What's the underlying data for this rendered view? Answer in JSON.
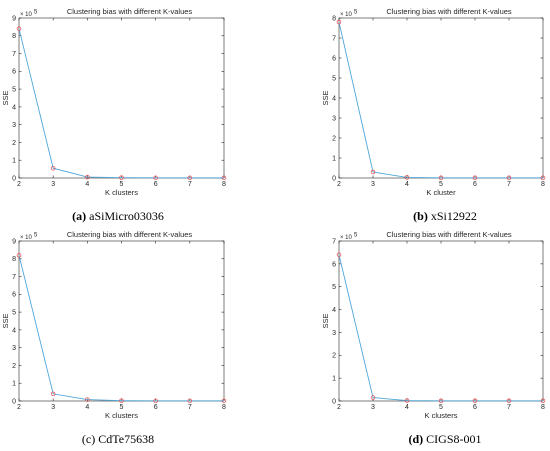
{
  "chart_data": [
    {
      "type": "line",
      "title": "Clustering bias with different K-values",
      "xlabel": "K clusters",
      "ylabel": "SSE",
      "multiplier": "× 10",
      "multiplier_exp": "5",
      "x": [
        2,
        3,
        4,
        5,
        6,
        7,
        8
      ],
      "y": [
        8.4,
        0.55,
        0.05,
        0.02,
        0.01,
        0.01,
        0.01
      ],
      "xlim": [
        2,
        8
      ],
      "ylim": [
        0,
        9
      ],
      "yticks": [
        0,
        1,
        2,
        3,
        4,
        5,
        6,
        7,
        8,
        9
      ],
      "caption_tag": "(a)",
      "caption_text": " aSiMicro03036",
      "tag_bold": true
    },
    {
      "type": "line",
      "title": "Clustering bias with different K-values",
      "xlabel": "K cluster",
      "ylabel": "SSE",
      "multiplier": "× 10",
      "multiplier_exp": "5",
      "x": [
        2,
        3,
        4,
        5,
        6,
        7,
        8
      ],
      "y": [
        7.8,
        0.3,
        0.03,
        0.01,
        0.01,
        0.01,
        0.01
      ],
      "xlim": [
        2,
        8
      ],
      "ylim": [
        0,
        8
      ],
      "yticks": [
        0,
        1,
        2,
        3,
        4,
        5,
        6,
        7,
        8
      ],
      "caption_tag": "(b)",
      "caption_text": " xSi12922",
      "tag_bold": true
    },
    {
      "type": "line",
      "title": "Clustering bias with different K-values",
      "xlabel": "K clusters",
      "ylabel": "SSE",
      "multiplier": "× 10",
      "multiplier_exp": "5",
      "x": [
        2,
        3,
        4,
        5,
        6,
        7,
        8
      ],
      "y": [
        8.2,
        0.4,
        0.08,
        0.02,
        0.01,
        0.01,
        0.01
      ],
      "xlim": [
        2,
        8
      ],
      "ylim": [
        0,
        9
      ],
      "yticks": [
        0,
        1,
        2,
        3,
        4,
        5,
        6,
        7,
        8,
        9
      ],
      "caption_tag": "(c)",
      "caption_text": " CdTe75638",
      "tag_bold": false
    },
    {
      "type": "line",
      "title": "Clustering bias with different K-values",
      "xlabel": "K clusters",
      "ylabel": "SSE",
      "multiplier": "× 10",
      "multiplier_exp": "5",
      "x": [
        2,
        3,
        4,
        5,
        6,
        7,
        8
      ],
      "y": [
        6.4,
        0.15,
        0.02,
        0.01,
        0.01,
        0.01,
        0.01
      ],
      "xlim": [
        2,
        8
      ],
      "ylim": [
        0,
        7
      ],
      "yticks": [
        0,
        1,
        2,
        3,
        4,
        5,
        6,
        7
      ],
      "caption_tag": "(d)",
      "caption_text": " CIGS8-001",
      "tag_bold": true
    }
  ],
  "colors": {
    "line": "#4fa6d8",
    "marker": "#e8474b",
    "axis": "#262626"
  }
}
